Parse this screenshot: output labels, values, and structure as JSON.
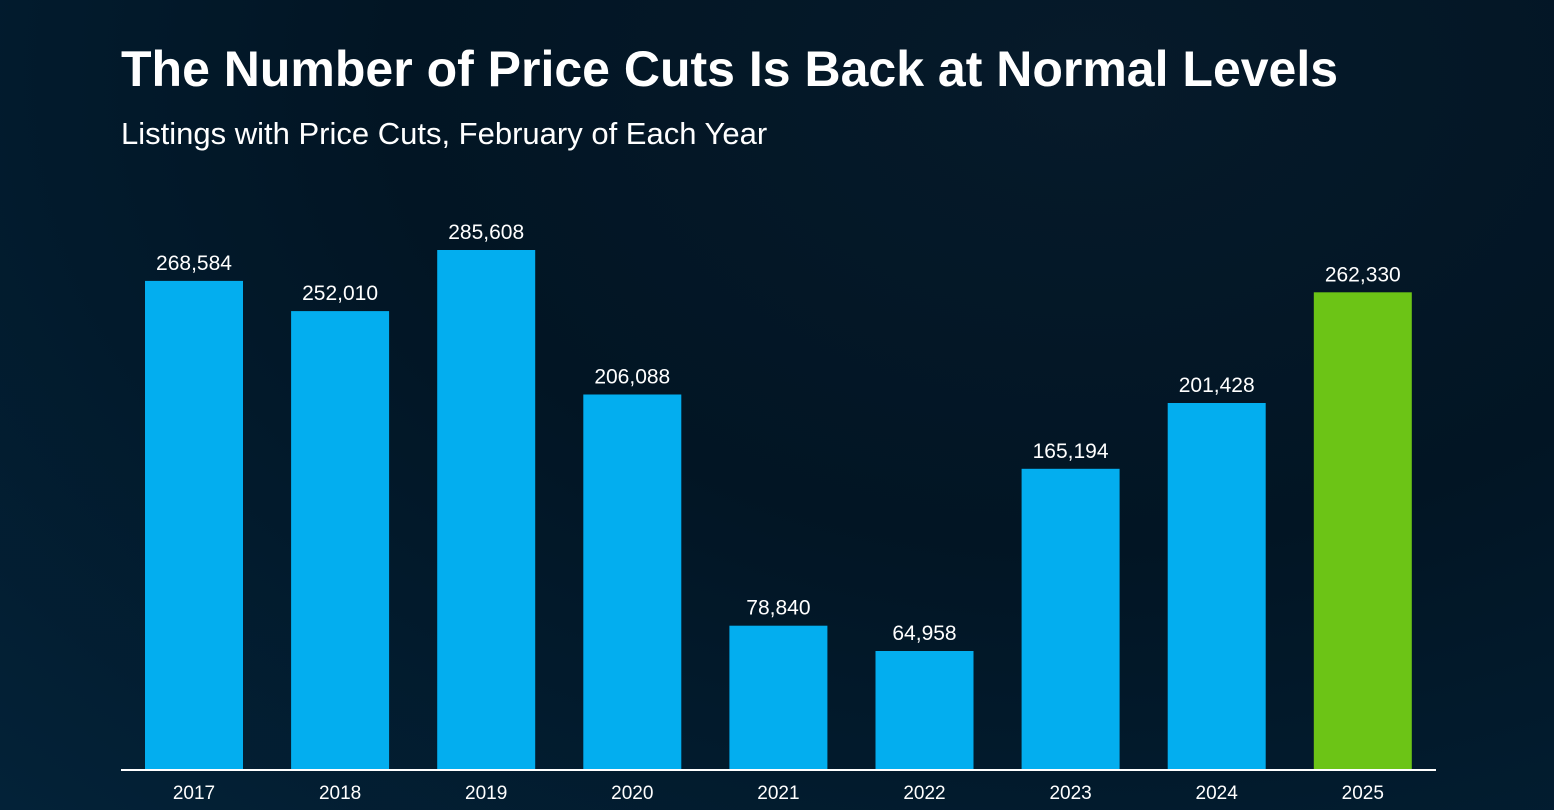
{
  "colors": {
    "bar": "#03aeef",
    "highlight_bar": "#6cc416",
    "axis": "#ffffff",
    "text": "#ffffff"
  },
  "chart_data": {
    "type": "bar",
    "title": "The Number of Price Cuts Is Back at Normal Levels",
    "subtitle": "Listings with Price Cuts, February of Each Year",
    "categories": [
      "2017",
      "2018",
      "2019",
      "2020",
      "2021",
      "2022",
      "2023",
      "2024",
      "2025"
    ],
    "values": [
      268584,
      252010,
      285608,
      206088,
      78840,
      64958,
      165194,
      201428,
      262330
    ],
    "value_labels": [
      "268,584",
      "252,010",
      "285,608",
      "206,088",
      "78,840",
      "64,958",
      "165,194",
      "201,428",
      "262,330"
    ],
    "highlight_category": "2025",
    "xlabel": "",
    "ylabel": "",
    "ylim": [
      0,
      285608
    ],
    "grid": false,
    "legend": "none"
  }
}
